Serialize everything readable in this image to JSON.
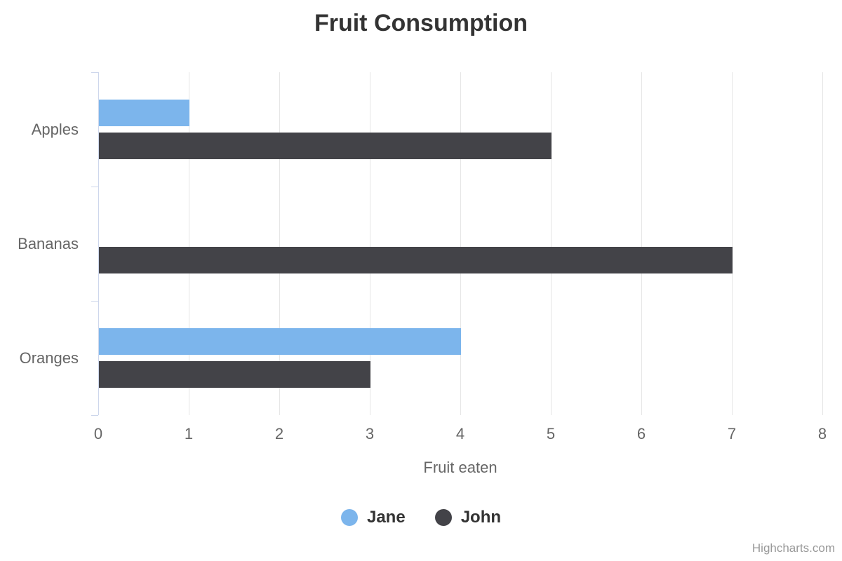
{
  "title": "Fruit Consumption",
  "credits": "Highcharts.com",
  "chart_data": {
    "type": "bar",
    "orientation": "horizontal",
    "title": "Fruit Consumption",
    "categories": [
      "Apples",
      "Bananas",
      "Oranges"
    ],
    "series": [
      {
        "name": "Jane",
        "color": "#7cb5ec",
        "values": [
          1,
          0,
          4
        ]
      },
      {
        "name": "John",
        "color": "#434348",
        "values": [
          5,
          7,
          3
        ]
      }
    ],
    "xlabel": "Fruit eaten",
    "ylabel": "",
    "value_axis": {
      "min": 0,
      "max": 8,
      "ticks": [
        0,
        1,
        2,
        3,
        4,
        5,
        6,
        7,
        8
      ]
    },
    "grid": true,
    "legend_position": "bottom"
  },
  "colors": {
    "series_jane": "#7cb5ec",
    "series_john": "#434348",
    "grid_line": "#e6e6e6",
    "axis_line": "#ccd6eb",
    "title_text": "#333333",
    "axis_text": "#666666",
    "legend_text": "#333333",
    "credits_text": "#999999"
  }
}
